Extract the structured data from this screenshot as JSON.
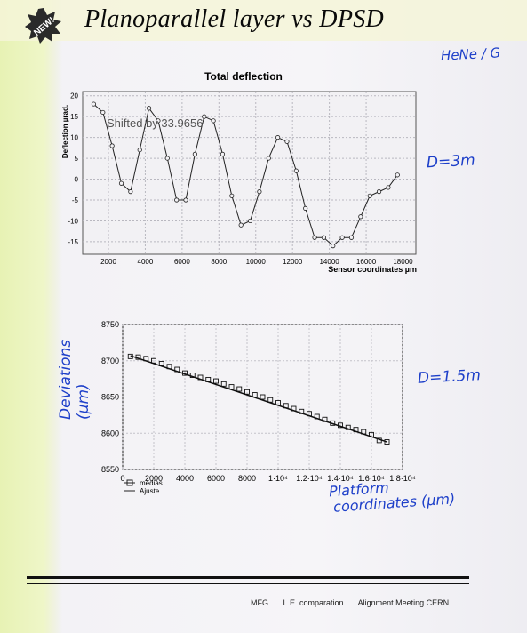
{
  "badge": {
    "text": "NEW!"
  },
  "page_title": "Planoparallel layer vs DPSD",
  "annotations": {
    "hene": "HeNe / G",
    "d1": "D=3m",
    "d2": "D=1.5m",
    "ylabel2": "Deviations (µm)",
    "xlabel2_line1": "Platform",
    "xlabel2_line2": "coordinates (µm)"
  },
  "footer": {
    "part1": "MFG",
    "part2": "L.E. comparation",
    "part3": "Alignment Meeting CERN"
  },
  "chart_data": [
    {
      "type": "line",
      "title": "Total deflection",
      "xlabel": "Sensor coordinates µm",
      "ylabel": "Deflection µrad.",
      "annotation": "Shifted by 33.9656",
      "xlim": [
        600,
        18700
      ],
      "ylim": [
        -18,
        21
      ],
      "xticks": [
        2000,
        4000,
        6000,
        8000,
        10000,
        12000,
        14000,
        16000,
        18000
      ],
      "yticks": [
        20,
        15,
        10,
        5,
        0,
        -5,
        -10,
        -15
      ],
      "grid": true,
      "series": [
        {
          "x": [
            1200,
            1700,
            2200,
            2700,
            3200,
            3700,
            4200,
            4700,
            5200,
            5700,
            6200,
            6700,
            7200,
            7700,
            8200,
            8700,
            9200,
            9700,
            10200,
            10700,
            11200,
            11700,
            12200,
            12700,
            13200,
            13700,
            14200,
            14700,
            15200,
            15700,
            16200,
            16700,
            17200,
            17700
          ],
          "values": [
            18,
            16,
            8,
            -1,
            -3,
            7,
            17,
            14,
            5,
            -5,
            -5,
            6,
            15,
            14,
            6,
            -4,
            -11,
            -10,
            -3,
            5,
            10,
            9,
            2,
            -7,
            -14,
            -14,
            -16,
            -14,
            -14,
            -9,
            -4,
            -3,
            -2,
            1
          ]
        }
      ]
    },
    {
      "type": "scatter",
      "xlabel": "",
      "ylabel": "",
      "xlim": [
        0,
        18000
      ],
      "ylim": [
        8550,
        8750
      ],
      "xticks": [
        0,
        2000,
        4000,
        6000,
        8000,
        10000,
        12000,
        14000,
        16000,
        18000
      ],
      "xtick_labels": [
        "0",
        "2000",
        "4000",
        "6000",
        "8000",
        "1·10⁴",
        "1.2·10⁴",
        "1.4·10⁴",
        "1.6·10⁴",
        "1.8·10⁴"
      ],
      "yticks": [
        8750,
        8700,
        8650,
        8600,
        8550
      ],
      "legend": {
        "placement": "bottom-left",
        "entries": [
          "medias",
          "Ajuste"
        ]
      },
      "grid": true,
      "series": [
        {
          "name": "medias",
          "x": [
            500,
            1000,
            1500,
            2000,
            2500,
            3000,
            3500,
            4000,
            4500,
            5000,
            5500,
            6000,
            6500,
            7000,
            7500,
            8000,
            8500,
            9000,
            9500,
            10000,
            10500,
            11000,
            11500,
            12000,
            12500,
            13000,
            13500,
            14000,
            14500,
            15000,
            15500,
            16000,
            16500,
            17000
          ],
          "values": [
            8706,
            8705,
            8703,
            8700,
            8696,
            8692,
            8688,
            8683,
            8680,
            8677,
            8674,
            8672,
            8668,
            8664,
            8661,
            8657,
            8653,
            8650,
            8646,
            8642,
            8638,
            8634,
            8630,
            8627,
            8623,
            8619,
            8614,
            8611,
            8608,
            8605,
            8602,
            8598,
            8590,
            8588
          ]
        },
        {
          "name": "Ajuste",
          "x": [
            500,
            17000
          ],
          "values": [
            8707,
            8588
          ]
        }
      ]
    }
  ]
}
